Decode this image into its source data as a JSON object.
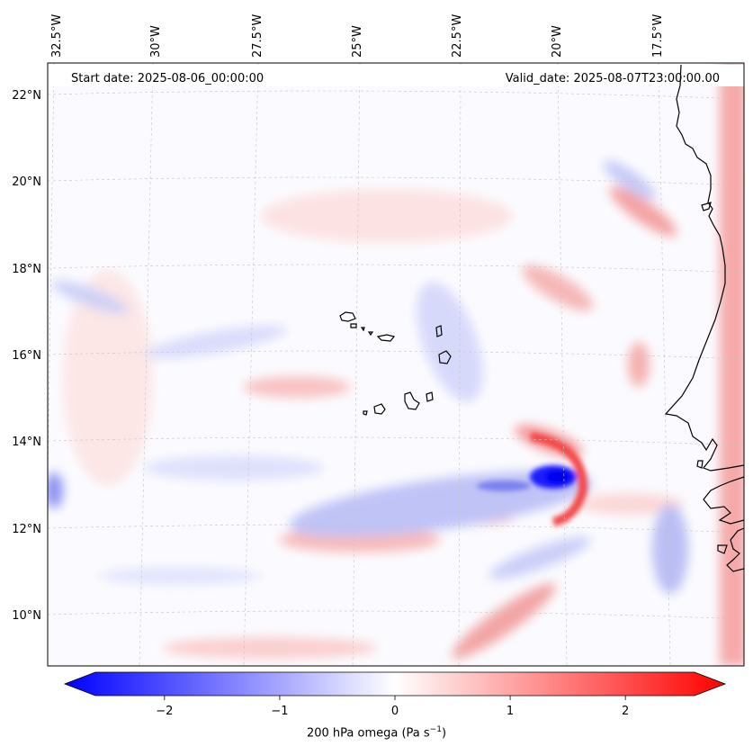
{
  "header": {
    "start_date": "Start date: 2025-08-06_00:00:00",
    "valid_date": "Valid_date: 2025-08-07T23:00:00.00"
  },
  "lon_labels": [
    "32.5°W",
    "30°W",
    "27.5°W",
    "25°W",
    "22.5°W",
    "20°W",
    "17.5°W"
  ],
  "lat_labels": [
    "22°N",
    "20°N",
    "18°N",
    "16°N",
    "14°N",
    "12°N",
    "10°N"
  ],
  "colorbar": {
    "ticks": [
      "−2",
      "−1",
      "0",
      "1",
      "2"
    ],
    "tick_values": [
      -2,
      -1,
      0,
      1,
      2
    ],
    "range": [
      -2.6,
      2.6
    ],
    "label_main": "200 hPa omega (Pa s",
    "label_exp": "−1",
    "label_close": ")",
    "cmap": "bwr",
    "colors": {
      "min": "#0000ff",
      "mid": "#ffffff",
      "max": "#ff0000"
    }
  },
  "map": {
    "field": "200 hPa omega",
    "strong_ascent_feature": "intense negative (blue) omega core near 13°N, 19.5°W",
    "coastline_color": "#000000",
    "gridline_color": "#bbbbbb"
  }
}
